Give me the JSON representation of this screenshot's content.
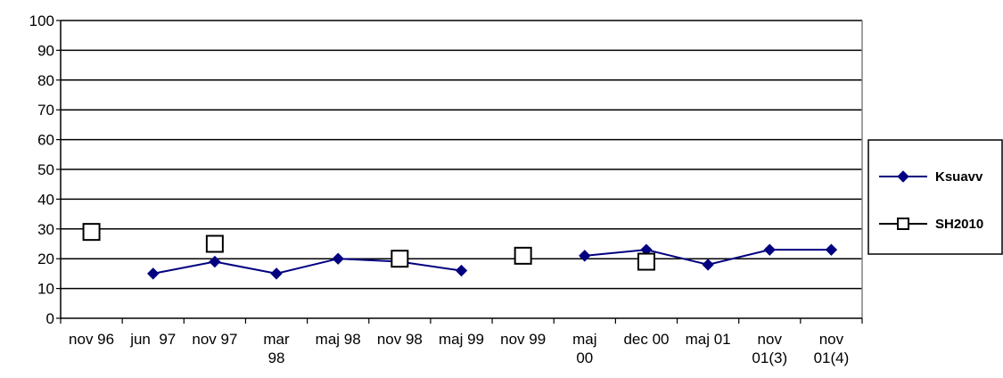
{
  "chart_data": {
    "type": "line",
    "title": "",
    "xlabel": "",
    "ylabel": "",
    "ylim": [
      0,
      100
    ],
    "yticks": [
      0,
      10,
      20,
      30,
      40,
      50,
      60,
      70,
      80,
      90,
      100
    ],
    "grid": "horizontal",
    "legend_position": "right",
    "categories": [
      [
        "nov 96"
      ],
      [
        "jun  97"
      ],
      [
        "nov 97"
      ],
      [
        "mar",
        "98"
      ],
      [
        "maj 98"
      ],
      [
        "nov 98"
      ],
      [
        "maj 99"
      ],
      [
        "nov 99"
      ],
      [
        "maj",
        "00"
      ],
      [
        "dec 00"
      ],
      [
        "maj 01"
      ],
      [
        "nov",
        "01(3)"
      ],
      [
        "nov",
        "01(4)"
      ]
    ],
    "series": [
      {
        "name": "Ksuavv",
        "color": "#000080",
        "marker": "diamond",
        "line": true,
        "values": [
          null,
          15,
          19,
          15,
          20,
          19,
          16,
          null,
          21,
          23,
          18,
          23,
          23
        ]
      },
      {
        "name": "SH2010",
        "color": "#000000",
        "marker": "open-square",
        "line": false,
        "values": [
          29,
          null,
          25,
          null,
          null,
          20,
          null,
          21,
          null,
          19,
          null,
          null,
          null
        ]
      }
    ]
  }
}
